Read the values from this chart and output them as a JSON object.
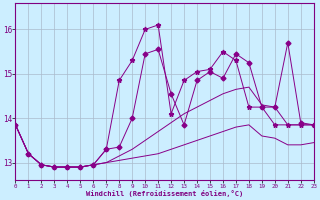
{
  "xlabel": "Windchill (Refroidissement éolien,°C)",
  "xlim": [
    0,
    23
  ],
  "ylim": [
    12.6,
    16.6
  ],
  "yticks": [
    13,
    14,
    15,
    16
  ],
  "xticks": [
    0,
    1,
    2,
    3,
    4,
    5,
    6,
    7,
    8,
    9,
    10,
    11,
    12,
    13,
    14,
    15,
    16,
    17,
    18,
    19,
    20,
    21,
    22,
    23
  ],
  "bg_color": "#cceeff",
  "grid_color": "#aabbcc",
  "line_color": "#880088",
  "line1_x": [
    0,
    1,
    2,
    3,
    4,
    5,
    6,
    7,
    8,
    9,
    10,
    11,
    12,
    13,
    14,
    15,
    16,
    17,
    18,
    19,
    20,
    21,
    22,
    23
  ],
  "line1_y": [
    13.85,
    13.2,
    12.95,
    12.9,
    12.9,
    12.9,
    12.95,
    13.0,
    13.05,
    13.1,
    13.15,
    13.2,
    13.3,
    13.4,
    13.5,
    13.6,
    13.7,
    13.8,
    13.85,
    13.6,
    13.55,
    13.4,
    13.4,
    13.45
  ],
  "line2_x": [
    0,
    1,
    2,
    3,
    4,
    5,
    6,
    7,
    8,
    9,
    10,
    11,
    12,
    13,
    14,
    15,
    16,
    17,
    18,
    19,
    20,
    21,
    22,
    23
  ],
  "line2_y": [
    13.85,
    13.2,
    12.95,
    12.9,
    12.9,
    12.9,
    12.95,
    13.0,
    13.15,
    13.3,
    13.5,
    13.7,
    13.9,
    14.1,
    14.25,
    14.4,
    14.55,
    14.65,
    14.7,
    14.3,
    14.25,
    13.85,
    13.85,
    13.85
  ],
  "line3_x": [
    0,
    1,
    2,
    3,
    4,
    5,
    6,
    7,
    8,
    9,
    10,
    11,
    12,
    13,
    14,
    15,
    16,
    17,
    18,
    19,
    20,
    21,
    22,
    23
  ],
  "line3_y": [
    13.85,
    13.2,
    12.95,
    12.9,
    12.9,
    12.9,
    12.95,
    13.3,
    13.35,
    14.0,
    15.45,
    15.55,
    14.55,
    13.85,
    14.85,
    15.05,
    14.9,
    15.45,
    15.25,
    14.25,
    14.25,
    15.7,
    13.9,
    13.85
  ],
  "line4_x": [
    0,
    1,
    2,
    3,
    4,
    5,
    6,
    7,
    8,
    9,
    10,
    11,
    12,
    13,
    14,
    15,
    16,
    17,
    18,
    19,
    20,
    21,
    22,
    23
  ],
  "line4_y": [
    13.85,
    13.2,
    12.95,
    12.9,
    12.9,
    12.9,
    12.95,
    13.3,
    14.85,
    15.3,
    16.0,
    16.1,
    14.1,
    14.85,
    15.05,
    15.1,
    15.5,
    15.3,
    14.25,
    14.25,
    13.85,
    13.85,
    13.85,
    13.85
  ]
}
